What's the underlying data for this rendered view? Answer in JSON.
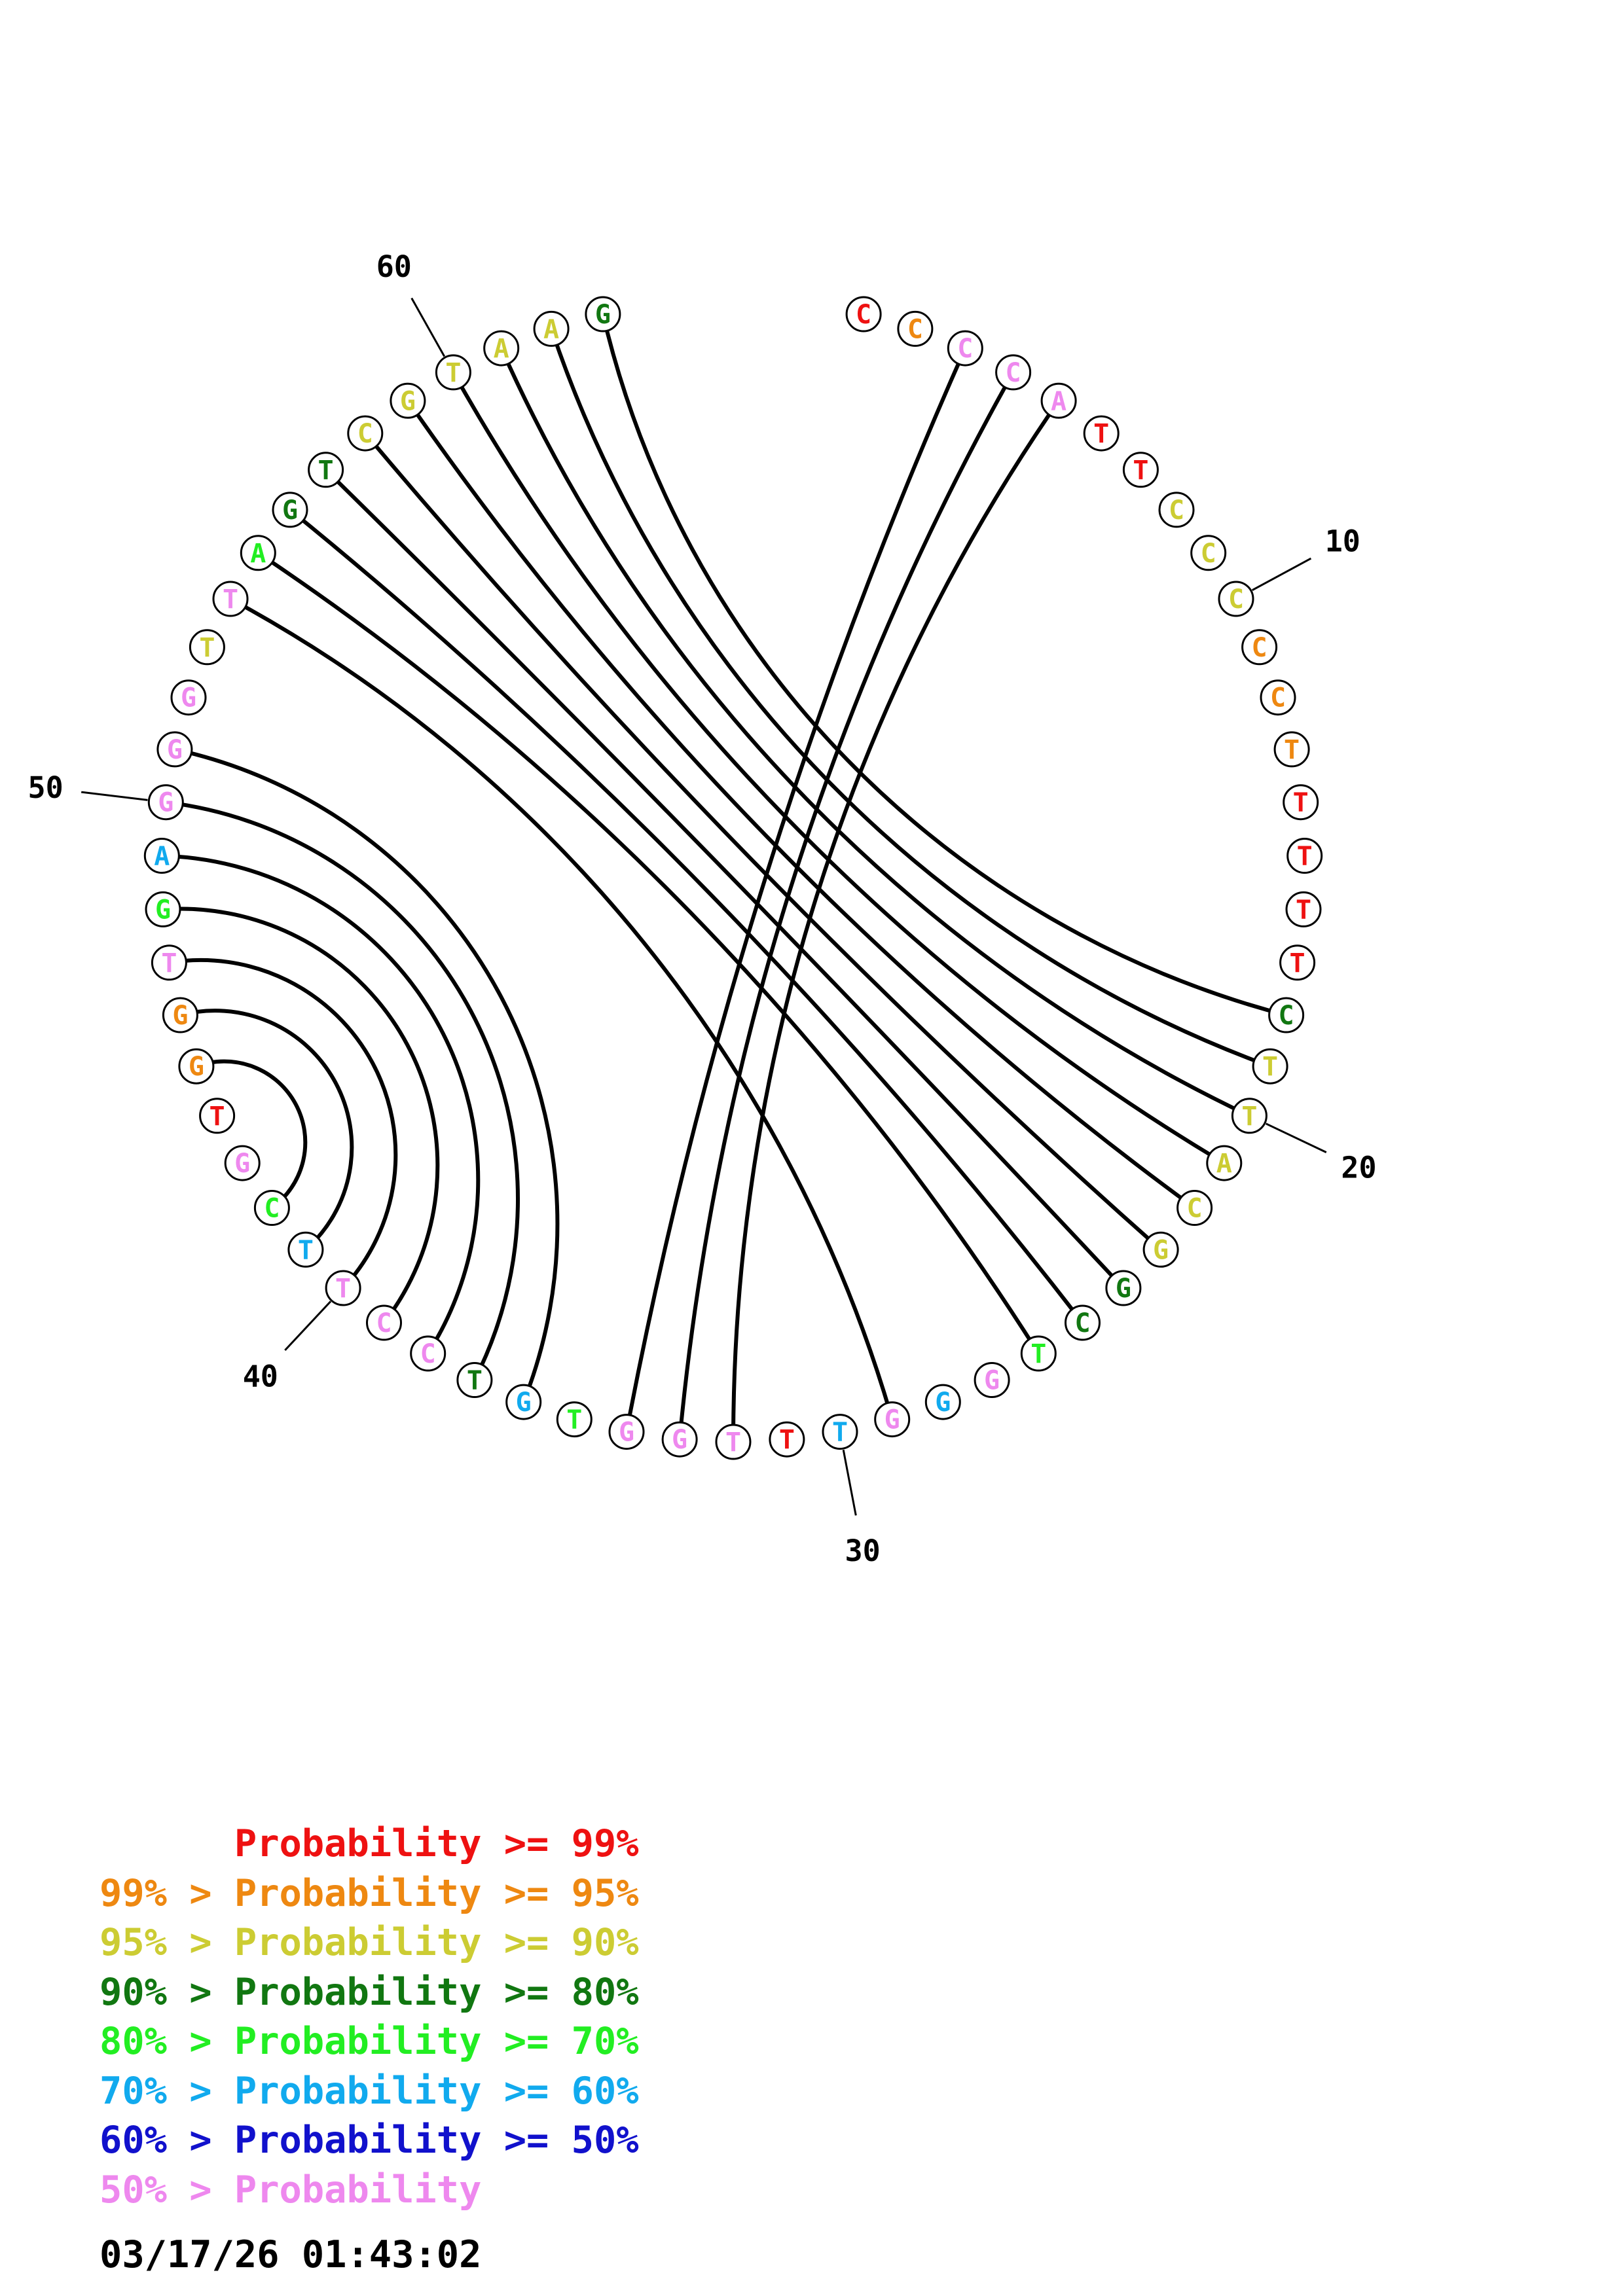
{
  "sequence": [
    {
      "index": 1,
      "letter": "C",
      "prob_class": 0
    },
    {
      "index": 2,
      "letter": "C",
      "prob_class": 1
    },
    {
      "index": 3,
      "letter": "C",
      "prob_class": 7
    },
    {
      "index": 4,
      "letter": "C",
      "prob_class": 7
    },
    {
      "index": 5,
      "letter": "A",
      "prob_class": 7
    },
    {
      "index": 6,
      "letter": "T",
      "prob_class": 0
    },
    {
      "index": 7,
      "letter": "T",
      "prob_class": 0
    },
    {
      "index": 8,
      "letter": "C",
      "prob_class": 2
    },
    {
      "index": 9,
      "letter": "C",
      "prob_class": 2
    },
    {
      "index": 10,
      "letter": "C",
      "prob_class": 2
    },
    {
      "index": 11,
      "letter": "C",
      "prob_class": 1
    },
    {
      "index": 12,
      "letter": "C",
      "prob_class": 1
    },
    {
      "index": 13,
      "letter": "T",
      "prob_class": 1
    },
    {
      "index": 14,
      "letter": "T",
      "prob_class": 0
    },
    {
      "index": 15,
      "letter": "T",
      "prob_class": 0
    },
    {
      "index": 16,
      "letter": "T",
      "prob_class": 0
    },
    {
      "index": 17,
      "letter": "T",
      "prob_class": 0
    },
    {
      "index": 18,
      "letter": "C",
      "prob_class": 3
    },
    {
      "index": 19,
      "letter": "T",
      "prob_class": 2
    },
    {
      "index": 20,
      "letter": "T",
      "prob_class": 2
    },
    {
      "index": 21,
      "letter": "A",
      "prob_class": 2
    },
    {
      "index": 22,
      "letter": "C",
      "prob_class": 2
    },
    {
      "index": 23,
      "letter": "G",
      "prob_class": 2
    },
    {
      "index": 24,
      "letter": "G",
      "prob_class": 3
    },
    {
      "index": 25,
      "letter": "C",
      "prob_class": 3
    },
    {
      "index": 26,
      "letter": "T",
      "prob_class": 4
    },
    {
      "index": 27,
      "letter": "G",
      "prob_class": 7
    },
    {
      "index": 28,
      "letter": "G",
      "prob_class": 5
    },
    {
      "index": 29,
      "letter": "G",
      "prob_class": 7
    },
    {
      "index": 30,
      "letter": "T",
      "prob_class": 5
    },
    {
      "index": 31,
      "letter": "T",
      "prob_class": 0
    },
    {
      "index": 32,
      "letter": "T",
      "prob_class": 7
    },
    {
      "index": 33,
      "letter": "G",
      "prob_class": 7
    },
    {
      "index": 34,
      "letter": "G",
      "prob_class": 7
    },
    {
      "index": 35,
      "letter": "T",
      "prob_class": 4
    },
    {
      "index": 36,
      "letter": "G",
      "prob_class": 5
    },
    {
      "index": 37,
      "letter": "T",
      "prob_class": 3
    },
    {
      "index": 38,
      "letter": "C",
      "prob_class": 7
    },
    {
      "index": 39,
      "letter": "C",
      "prob_class": 7
    },
    {
      "index": 40,
      "letter": "T",
      "prob_class": 7
    },
    {
      "index": 41,
      "letter": "T",
      "prob_class": 5
    },
    {
      "index": 42,
      "letter": "C",
      "prob_class": 4
    },
    {
      "index": 43,
      "letter": "G",
      "prob_class": 7
    },
    {
      "index": 44,
      "letter": "T",
      "prob_class": 0
    },
    {
      "index": 45,
      "letter": "G",
      "prob_class": 1
    },
    {
      "index": 46,
      "letter": "G",
      "prob_class": 1
    },
    {
      "index": 47,
      "letter": "T",
      "prob_class": 7
    },
    {
      "index": 48,
      "letter": "G",
      "prob_class": 4
    },
    {
      "index": 49,
      "letter": "A",
      "prob_class": 5
    },
    {
      "index": 50,
      "letter": "G",
      "prob_class": 7
    },
    {
      "index": 51,
      "letter": "G",
      "prob_class": 7
    },
    {
      "index": 52,
      "letter": "G",
      "prob_class": 7
    },
    {
      "index": 53,
      "letter": "T",
      "prob_class": 2
    },
    {
      "index": 54,
      "letter": "T",
      "prob_class": 7
    },
    {
      "index": 55,
      "letter": "A",
      "prob_class": 4
    },
    {
      "index": 56,
      "letter": "G",
      "prob_class": 3
    },
    {
      "index": 57,
      "letter": "T",
      "prob_class": 3
    },
    {
      "index": 58,
      "letter": "C",
      "prob_class": 2
    },
    {
      "index": 59,
      "letter": "G",
      "prob_class": 2
    },
    {
      "index": 60,
      "letter": "T",
      "prob_class": 2
    },
    {
      "index": 61,
      "letter": "A",
      "prob_class": 2
    },
    {
      "index": 62,
      "letter": "A",
      "prob_class": 2
    },
    {
      "index": 63,
      "letter": "G",
      "prob_class": 3
    }
  ],
  "pairs": [
    [
      3,
      34
    ],
    [
      4,
      33
    ],
    [
      5,
      32
    ],
    [
      18,
      63
    ],
    [
      19,
      62
    ],
    [
      20,
      61
    ],
    [
      21,
      60
    ],
    [
      22,
      59
    ],
    [
      23,
      58
    ],
    [
      24,
      57
    ],
    [
      25,
      56
    ],
    [
      26,
      55
    ],
    [
      29,
      54
    ],
    [
      36,
      51
    ],
    [
      37,
      50
    ],
    [
      38,
      49
    ],
    [
      39,
      48
    ],
    [
      40,
      47
    ],
    [
      41,
      46
    ],
    [
      42,
      45
    ]
  ],
  "tick_labels": [
    {
      "index": 10,
      "text": "10"
    },
    {
      "index": 20,
      "text": "20"
    },
    {
      "index": 30,
      "text": "30"
    },
    {
      "index": 40,
      "text": "40"
    },
    {
      "index": 50,
      "text": "50"
    },
    {
      "index": 60,
      "text": "60"
    }
  ],
  "colors": {
    "classes": [
      "#ee1111",
      "#ee8811",
      "#cccc33",
      "#117711",
      "#22ee22",
      "#11aaee",
      "#1111cc",
      "#ee88ee"
    ],
    "circle_stroke": "#000000",
    "pair_stroke": "#000000"
  },
  "legend": [
    {
      "text": "      Probability >= 99%",
      "prob_class": 0
    },
    {
      "text": "99% > Probability >= 95%",
      "prob_class": 1
    },
    {
      "text": "95% > Probability >= 90%",
      "prob_class": 2
    },
    {
      "text": "90% > Probability >= 80%",
      "prob_class": 3
    },
    {
      "text": "80% > Probability >= 70%",
      "prob_class": 4
    },
    {
      "text": "70% > Probability >= 60%",
      "prob_class": 5
    },
    {
      "text": "60% > Probability >= 50%",
      "prob_class": 6
    },
    {
      "text": "50% > Probability",
      "prob_class": 7
    }
  ],
  "timestamp": "03/17/26 01:43:02"
}
